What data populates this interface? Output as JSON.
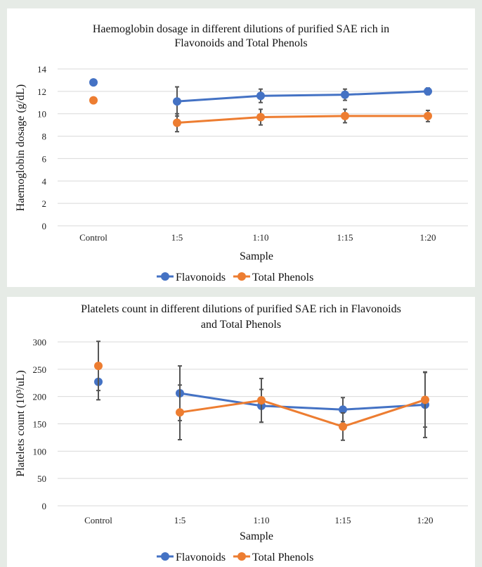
{
  "charts": [
    {
      "title_line1": "Haemoglobin dosage in different dilutions of purified SAE rich in",
      "title_line2": "Flavonoids and Total Phenols",
      "ylabel": "Haemoglobin dosage (g/dL)",
      "xlabel": "Sample",
      "legend": [
        "Flavonoids",
        "Total Phenols"
      ]
    },
    {
      "title_line1": "Platelets count in different dilutions of purified SAE rich in Flavonoids",
      "title_line2": "and Total Phenols",
      "ylabel": "Platelets count (10³/uL)",
      "xlabel": "Sample",
      "legend": [
        "Flavonoids",
        "Total Phenols"
      ]
    }
  ],
  "colors": {
    "flavonoids": "#4472c4",
    "total_phenols": "#ed7d31",
    "grid": "#d9d9d9",
    "errorbar": "#555555"
  },
  "chart_data": [
    {
      "type": "line",
      "title": "Haemoglobin dosage in different dilutions of purified SAE rich in Flavonoids and Total Phenols",
      "xlabel": "Sample",
      "ylabel": "Haemoglobin dosage (g/dL)",
      "categories": [
        "Control",
        "1:5",
        "1:10",
        "1:15",
        "1:20"
      ],
      "yticks": [
        0,
        2,
        4,
        6,
        8,
        10,
        12,
        14
      ],
      "ylim": [
        0,
        14
      ],
      "grid": true,
      "legend_position": "bottom",
      "series": [
        {
          "name": "Flavonoids",
          "values": [
            12.8,
            11.1,
            11.6,
            11.7,
            12.0
          ],
          "errors": [
            0,
            1.3,
            0.6,
            0.5,
            0.3
          ],
          "connect_from": 1
        },
        {
          "name": "Total Phenols",
          "values": [
            11.2,
            9.2,
            9.7,
            9.8,
            9.8
          ],
          "errors": [
            0,
            0.8,
            0.7,
            0.6,
            0.5
          ],
          "connect_from": 1
        }
      ]
    },
    {
      "type": "line",
      "title": "Platelets count in different dilutions of purified SAE rich in Flavonoids and Total Phenols",
      "xlabel": "Sample",
      "ylabel": "Platelets count (10³/uL)",
      "categories": [
        "Control",
        "1:5",
        "1:10",
        "1:15",
        "1:20"
      ],
      "yticks": [
        0,
        50,
        100,
        150,
        200,
        250,
        300
      ],
      "ylim": [
        0,
        300
      ],
      "grid": true,
      "legend_position": "bottom",
      "series": [
        {
          "name": "Flavonoids",
          "values": [
            227,
            206,
            183,
            176,
            185
          ],
          "errors": [
            33,
            50,
            30,
            22,
            60
          ],
          "connect_from": 1
        },
        {
          "name": "Total Phenols",
          "values": [
            256,
            171,
            193,
            145,
            194
          ],
          "errors": [
            45,
            50,
            40,
            25,
            50
          ],
          "connect_from": 1
        }
      ]
    }
  ]
}
